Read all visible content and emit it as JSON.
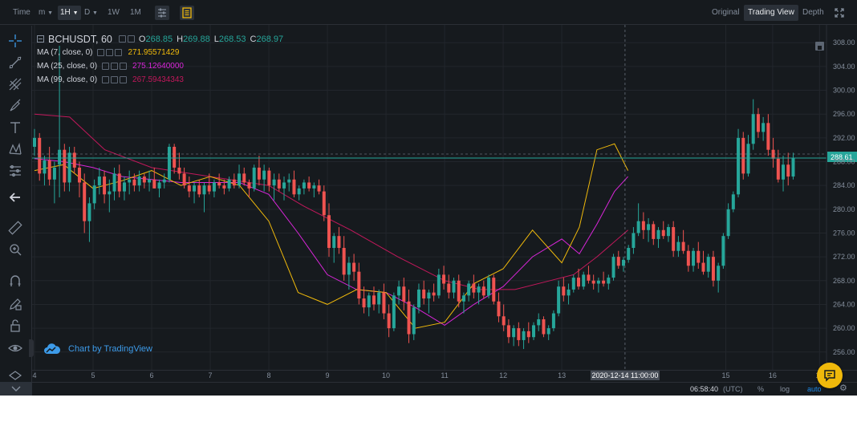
{
  "toolbar": {
    "time_label": "Time",
    "minute_label": "m",
    "hour_label": "1H",
    "day_label": "D",
    "week_label": "1W",
    "month_label": "1M",
    "view_original": "Original",
    "view_tradingview": "Trading View",
    "view_depth": "Depth"
  },
  "legend": {
    "symbol": "BCHUSDT, 60",
    "open_label": "O",
    "open": "268.85",
    "high_label": "H",
    "high": "269.88",
    "low_label": "L",
    "low": "268.53",
    "close_label": "C",
    "close": "268.97",
    "ma": [
      {
        "label": "MA (7, close, 0)",
        "value": "271.95571429",
        "color": "#f0b90b"
      },
      {
        "label": "MA (25, close, 0)",
        "value": "275.12640000",
        "color": "#d926d9"
      },
      {
        "label": "MA (99, close, 0)",
        "value": "267.59434343",
        "color": "#c2185b"
      }
    ]
  },
  "watermark": "Chart by TradingView",
  "price_axis": {
    "ticks": [
      "308.00",
      "304.00",
      "300.00",
      "296.00",
      "292.00",
      "288.00",
      "284.00",
      "280.00",
      "276.00",
      "272.00",
      "268.00",
      "264.00",
      "260.00",
      "256.00"
    ],
    "current_price": "288.61"
  },
  "time_axis": {
    "ticks": [
      "4",
      "5",
      "6",
      "7",
      "8",
      "9",
      "10",
      "11",
      "12",
      "13",
      "15",
      "16",
      "17"
    ],
    "crosshair_label": "2020-12-14 11:00:00"
  },
  "bottombar": {
    "clock": "06:58:40",
    "timezone": "(UTC)",
    "percent": "%",
    "log": "log",
    "auto": "auto"
  },
  "colors": {
    "up": "#26a69a",
    "down": "#ef5350",
    "ma7": "#f0b90b",
    "ma25": "#d926d9",
    "ma99": "#c2185b",
    "price_line": "#26a69a",
    "background": "#161a1e"
  },
  "chart_data": {
    "type": "candlestick",
    "symbol": "BCHUSDT",
    "interval": "60",
    "ylim": [
      253,
      311
    ],
    "grid": true,
    "last_price": 288.61,
    "candles": [
      [
        4.0,
        290.5,
        293.5,
        289.0,
        292.0
      ],
      [
        4.07,
        292.0,
        292.8,
        284.8,
        286.0
      ],
      [
        4.13,
        286.0,
        289.0,
        284.0,
        288.2
      ],
      [
        4.2,
        288.2,
        290.5,
        284.0,
        285.0
      ],
      [
        4.27,
        285.0,
        288.0,
        281.0,
        287.0
      ],
      [
        4.33,
        287.5,
        307.5,
        282.0,
        290.0
      ],
      [
        4.4,
        290.0,
        291.0,
        283.0,
        284.5
      ],
      [
        4.47,
        284.5,
        290.5,
        283.0,
        289.5
      ],
      [
        4.53,
        289.5,
        290.5,
        286.0,
        287.0
      ],
      [
        4.6,
        287.0,
        288.0,
        282.0,
        284.5
      ],
      [
        4.67,
        284.5,
        286.0,
        276.0,
        278.0
      ],
      [
        4.73,
        278.0,
        282.0,
        274.5,
        281.0
      ],
      [
        4.8,
        281.0,
        285.0,
        280.0,
        284.0
      ],
      [
        4.87,
        284.0,
        287.0,
        282.5,
        285.5
      ],
      [
        4.93,
        285.5,
        286.5,
        281.0,
        282.5
      ],
      [
        5.0,
        282.5,
        285.0,
        279.5,
        283.0
      ],
      [
        5.07,
        283.0,
        287.0,
        281.5,
        286.0
      ],
      [
        5.13,
        286.0,
        287.5,
        282.0,
        283.0
      ],
      [
        5.2,
        283.0,
        285.5,
        281.5,
        284.5
      ],
      [
        5.27,
        284.5,
        286.5,
        282.5,
        285.0
      ],
      [
        5.33,
        285.0,
        286.0,
        283.0,
        284.0
      ],
      [
        5.4,
        284.0,
        286.5,
        283.0,
        285.5
      ],
      [
        5.47,
        285.5,
        286.0,
        283.5,
        284.5
      ],
      [
        5.53,
        284.5,
        286.5,
        283.0,
        285.0
      ],
      [
        5.6,
        285.0,
        287.0,
        283.5,
        283.5
      ],
      [
        5.67,
        283.5,
        285.0,
        282.0,
        284.5
      ],
      [
        5.73,
        284.5,
        286.0,
        283.5,
        285.0
      ],
      [
        5.8,
        285.0,
        291.0,
        284.5,
        290.5
      ],
      [
        5.87,
        290.5,
        291.0,
        286.0,
        287.0
      ],
      [
        5.93,
        287.0,
        289.5,
        285.0,
        286.0
      ],
      [
        6.0,
        286.0,
        287.0,
        283.5,
        284.0
      ],
      [
        6.07,
        284.0,
        285.5,
        282.0,
        283.0
      ],
      [
        6.13,
        283.0,
        284.5,
        281.0,
        284.0
      ],
      [
        6.2,
        284.0,
        285.0,
        282.0,
        282.5
      ],
      [
        6.27,
        282.5,
        284.5,
        279.5,
        284.0
      ],
      [
        6.33,
        284.0,
        286.0,
        282.5,
        283.0
      ],
      [
        6.4,
        283.0,
        285.0,
        282.0,
        284.5
      ],
      [
        6.47,
        284.5,
        286.0,
        283.5,
        284.0
      ],
      [
        6.53,
        284.0,
        285.0,
        282.5,
        283.5
      ],
      [
        6.6,
        283.5,
        285.5,
        283.0,
        285.0
      ],
      [
        6.67,
        285.0,
        286.0,
        283.5,
        284.0
      ],
      [
        6.73,
        284.0,
        287.5,
        283.5,
        286.0
      ],
      [
        6.8,
        286.0,
        287.0,
        284.0,
        284.5
      ],
      [
        6.87,
        284.5,
        285.0,
        282.0,
        283.5
      ],
      [
        6.93,
        283.5,
        287.5,
        283.0,
        287.0
      ],
      [
        7.0,
        287.0,
        289.0,
        284.0,
        285.0
      ],
      [
        7.07,
        285.0,
        287.5,
        283.0,
        286.5
      ],
      [
        7.13,
        286.5,
        287.0,
        283.0,
        284.0
      ],
      [
        7.2,
        284.0,
        286.0,
        281.5,
        285.0
      ],
      [
        7.27,
        285.0,
        286.0,
        283.0,
        283.5
      ],
      [
        7.33,
        283.5,
        285.5,
        281.5,
        284.5
      ],
      [
        7.4,
        284.5,
        286.0,
        283.0,
        285.0
      ],
      [
        7.47,
        285.0,
        286.5,
        282.0,
        282.5
      ],
      [
        7.53,
        282.5,
        284.0,
        281.5,
        283.5
      ],
      [
        7.6,
        283.5,
        285.0,
        282.5,
        284.5
      ],
      [
        7.67,
        284.5,
        285.5,
        283.0,
        283.5
      ],
      [
        7.73,
        283.5,
        284.5,
        282.0,
        284.0
      ],
      [
        7.8,
        284.0,
        285.0,
        282.5,
        283.0
      ],
      [
        7.87,
        283.0,
        284.0,
        278.0,
        279.0
      ],
      [
        7.93,
        279.0,
        281.0,
        272.0,
        273.5
      ],
      [
        8.0,
        273.5,
        276.0,
        271.0,
        275.5
      ],
      [
        8.07,
        275.5,
        277.0,
        272.5,
        273.5
      ],
      [
        8.13,
        273.5,
        275.5,
        268.0,
        269.0
      ],
      [
        8.2,
        269.0,
        272.0,
        266.5,
        271.0
      ],
      [
        8.27,
        271.0,
        272.5,
        268.0,
        269.5
      ],
      [
        8.33,
        269.5,
        271.0,
        264.0,
        265.0
      ],
      [
        8.4,
        265.0,
        267.0,
        262.5,
        263.5
      ],
      [
        8.47,
        263.5,
        266.0,
        262.0,
        265.5
      ],
      [
        8.53,
        265.5,
        267.0,
        263.0,
        264.0
      ],
      [
        8.6,
        264.0,
        266.5,
        262.5,
        266.0
      ],
      [
        8.67,
        266.0,
        267.5,
        261.5,
        262.5
      ],
      [
        8.73,
        262.5,
        264.0,
        258.5,
        260.0
      ],
      [
        8.8,
        260.0,
        266.0,
        259.5,
        265.5
      ],
      [
        8.87,
        265.5,
        268.0,
        264.0,
        267.0
      ],
      [
        8.93,
        267.0,
        268.5,
        263.0,
        264.5
      ],
      [
        9.0,
        264.5,
        266.5,
        257.5,
        259.0
      ],
      [
        9.07,
        259.0,
        264.0,
        258.0,
        263.5
      ],
      [
        9.13,
        263.5,
        267.5,
        262.5,
        266.5
      ],
      [
        9.2,
        266.5,
        268.0,
        264.0,
        265.0
      ],
      [
        9.27,
        265.0,
        266.5,
        262.5,
        266.0
      ],
      [
        9.33,
        266.0,
        267.5,
        264.5,
        265.5
      ],
      [
        9.4,
        265.5,
        270.0,
        265.0,
        269.0
      ],
      [
        9.47,
        269.0,
        270.5,
        266.5,
        267.5
      ],
      [
        9.53,
        267.5,
        269.0,
        265.0,
        266.0
      ],
      [
        9.6,
        266.0,
        268.5,
        265.0,
        268.0
      ],
      [
        9.67,
        268.0,
        269.0,
        263.5,
        264.5
      ],
      [
        9.73,
        264.5,
        266.0,
        262.5,
        265.5
      ],
      [
        9.8,
        265.5,
        268.0,
        264.5,
        267.5
      ],
      [
        9.87,
        267.5,
        269.0,
        265.0,
        266.0
      ],
      [
        9.93,
        266.0,
        267.5,
        264.0,
        267.0
      ],
      [
        10.0,
        267.0,
        268.0,
        265.0,
        265.5
      ],
      [
        10.07,
        265.5,
        269.0,
        265.0,
        268.5
      ],
      [
        10.13,
        268.5,
        269.0,
        264.0,
        264.5
      ],
      [
        10.2,
        264.5,
        266.0,
        261.0,
        262.0
      ],
      [
        10.27,
        262.0,
        264.0,
        259.5,
        260.5
      ],
      [
        10.33,
        260.5,
        261.5,
        257.5,
        258.5
      ],
      [
        10.4,
        258.5,
        260.5,
        257.0,
        260.0
      ],
      [
        10.47,
        260.0,
        261.0,
        257.0,
        258.0
      ],
      [
        10.53,
        258.0,
        260.0,
        256.5,
        259.5
      ],
      [
        10.6,
        259.5,
        261.0,
        257.5,
        258.5
      ],
      [
        10.67,
        258.5,
        261.0,
        258.0,
        260.5
      ],
      [
        10.73,
        260.5,
        262.5,
        259.5,
        261.5
      ],
      [
        10.8,
        261.5,
        262.0,
        258.5,
        259.0
      ],
      [
        10.87,
        259.0,
        260.5,
        258.0,
        260.0
      ],
      [
        10.93,
        260.0,
        263.0,
        259.5,
        262.5
      ],
      [
        11.0,
        262.5,
        268.0,
        262.0,
        267.0
      ],
      [
        11.07,
        267.0,
        268.5,
        264.5,
        265.5
      ],
      [
        11.13,
        265.5,
        267.5,
        264.0,
        266.5
      ],
      [
        11.2,
        266.5,
        269.0,
        266.0,
        268.5
      ],
      [
        11.27,
        268.5,
        270.0,
        266.5,
        267.0
      ],
      [
        11.33,
        267.0,
        269.5,
        266.5,
        269.0
      ],
      [
        11.4,
        269.0,
        270.5,
        267.5,
        268.0
      ],
      [
        11.47,
        268.0,
        269.0,
        266.5,
        267.5
      ],
      [
        11.53,
        267.5,
        268.5,
        266.0,
        268.0
      ],
      [
        11.6,
        268.0,
        269.5,
        267.0,
        267.5
      ],
      [
        11.67,
        267.5,
        269.0,
        266.5,
        268.5
      ],
      [
        11.73,
        268.5,
        272.5,
        268.0,
        272.0
      ],
      [
        11.8,
        272.0,
        273.0,
        270.0,
        270.5
      ],
      [
        11.87,
        270.5,
        272.0,
        269.5,
        271.5
      ],
      [
        11.93,
        271.5,
        274.0,
        271.0,
        273.5
      ],
      [
        12.0,
        273.5,
        277.0,
        272.5,
        276.0
      ],
      [
        12.07,
        276.0,
        281.0,
        275.5,
        278.0
      ],
      [
        12.13,
        278.0,
        279.5,
        275.0,
        276.5
      ],
      [
        12.2,
        276.5,
        278.5,
        274.5,
        277.5
      ],
      [
        12.27,
        277.5,
        278.0,
        274.0,
        275.0
      ],
      [
        12.33,
        275.0,
        277.0,
        273.5,
        276.5
      ],
      [
        12.4,
        276.5,
        278.0,
        275.0,
        275.5
      ],
      [
        12.47,
        275.5,
        277.5,
        274.5,
        277.0
      ],
      [
        12.53,
        277.0,
        278.0,
        272.0,
        273.0
      ],
      [
        12.6,
        273.0,
        275.5,
        272.0,
        274.5
      ],
      [
        12.67,
        274.5,
        276.5,
        272.5,
        273.0
      ],
      [
        12.73,
        273.0,
        274.0,
        269.5,
        270.5
      ],
      [
        12.8,
        270.5,
        273.5,
        269.5,
        273.0
      ],
      [
        12.87,
        273.0,
        274.5,
        270.0,
        271.0
      ],
      [
        12.93,
        271.0,
        273.0,
        269.0,
        269.5
      ],
      [
        13.0,
        269.5,
        272.5,
        268.5,
        272.0
      ],
      [
        13.07,
        272.0,
        273.0,
        267.0,
        268.0
      ],
      [
        13.13,
        268.0,
        271.0,
        266.0,
        270.5
      ],
      [
        13.2,
        270.5,
        276.0,
        270.0,
        275.5
      ],
      [
        13.27,
        275.5,
        281.0,
        275.0,
        280.0
      ],
      [
        13.33,
        280.0,
        283.0,
        279.5,
        282.5
      ],
      [
        13.4,
        282.5,
        293.5,
        282.0,
        292.0
      ],
      [
        13.47,
        292.0,
        293.0,
        285.0,
        286.0
      ],
      [
        13.53,
        286.0,
        292.5,
        285.5,
        291.0
      ],
      [
        13.6,
        291.0,
        298.5,
        290.0,
        296.0
      ],
      [
        13.67,
        296.0,
        297.0,
        292.0,
        293.0
      ],
      [
        13.73,
        293.0,
        295.5,
        291.5,
        294.5
      ],
      [
        13.8,
        294.5,
        296.0,
        289.0,
        290.0
      ],
      [
        13.87,
        290.0,
        292.0,
        287.0,
        288.5
      ],
      [
        13.93,
        288.5,
        290.0,
        284.5,
        285.0
      ],
      [
        14.0,
        285.0,
        289.0,
        283.0,
        287.5
      ],
      [
        14.07,
        287.5,
        289.5,
        284.0,
        285.5
      ],
      [
        14.13,
        285.5,
        289.5,
        285.0,
        288.61
      ]
    ],
    "ma7": [
      [
        4.0,
        286.5
      ],
      [
        4.5,
        287.5
      ],
      [
        5.0,
        283.5
      ],
      [
        5.5,
        284.8
      ],
      [
        6.0,
        286.5
      ],
      [
        6.5,
        284.0
      ],
      [
        7.0,
        285.5
      ],
      [
        7.5,
        284.0
      ],
      [
        8.0,
        278.0
      ],
      [
        8.5,
        266.0
      ],
      [
        9.0,
        264.0
      ],
      [
        9.5,
        266.5
      ],
      [
        10.0,
        266.0
      ],
      [
        10.5,
        260.0
      ],
      [
        11.0,
        261.0
      ],
      [
        11.5,
        267.5
      ],
      [
        12.0,
        270.0
      ],
      [
        12.5,
        276.5
      ],
      [
        13.0,
        271.0
      ],
      [
        13.3,
        277.0
      ],
      [
        13.6,
        290.0
      ],
      [
        13.9,
        291.0
      ],
      [
        14.13,
        286.5
      ]
    ],
    "ma25": [
      [
        4.0,
        288.5
      ],
      [
        4.5,
        288.0
      ],
      [
        5.0,
        287.0
      ],
      [
        5.5,
        285.5
      ],
      [
        6.0,
        285.0
      ],
      [
        6.5,
        284.5
      ],
      [
        7.0,
        284.5
      ],
      [
        7.5,
        284.5
      ],
      [
        8.0,
        282.5
      ],
      [
        8.5,
        276.0
      ],
      [
        9.0,
        269.0
      ],
      [
        9.5,
        266.5
      ],
      [
        10.0,
        266.0
      ],
      [
        10.5,
        263.5
      ],
      [
        11.0,
        260.5
      ],
      [
        11.5,
        264.0
      ],
      [
        12.0,
        267.0
      ],
      [
        12.5,
        272.0
      ],
      [
        13.0,
        275.0
      ],
      [
        13.3,
        272.5
      ],
      [
        13.6,
        277.5
      ],
      [
        13.9,
        283.0
      ],
      [
        14.13,
        285.5
      ]
    ],
    "ma99": [
      [
        4.0,
        296.0
      ],
      [
        4.6,
        295.5
      ],
      [
        5.2,
        290.0
      ],
      [
        6.0,
        287.0
      ],
      [
        7.0,
        285.5
      ],
      [
        8.0,
        284.0
      ],
      [
        8.6,
        280.5
      ],
      [
        9.4,
        276.5
      ],
      [
        10.2,
        272.0
      ],
      [
        11.0,
        268.0
      ],
      [
        11.6,
        266.5
      ],
      [
        12.2,
        266.5
      ],
      [
        12.8,
        268.0
      ],
      [
        13.2,
        269.0
      ],
      [
        13.6,
        272.0
      ],
      [
        14.13,
        276.5
      ]
    ]
  }
}
